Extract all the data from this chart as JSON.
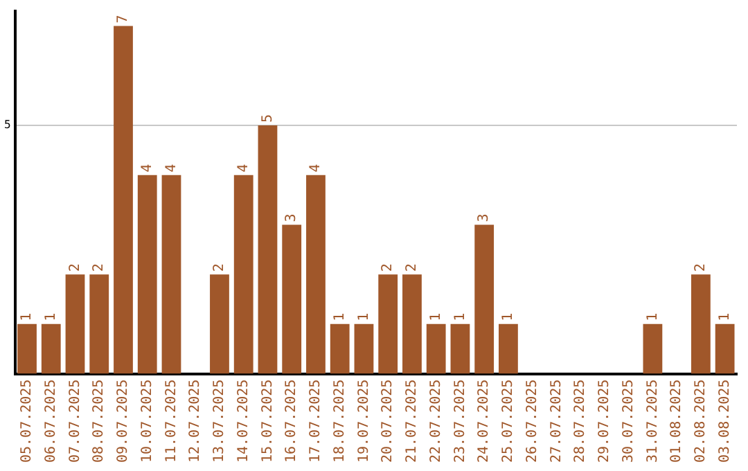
{
  "chart_data": {
    "type": "bar",
    "categories": [
      "05.07.2025",
      "06.07.2025",
      "07.07.2025",
      "08.07.2025",
      "09.07.2025",
      "10.07.2025",
      "11.07.2025",
      "12.07.2025",
      "13.07.2025",
      "14.07.2025",
      "15.07.2025",
      "16.07.2025",
      "17.07.2025",
      "18.07.2025",
      "19.07.2025",
      "20.07.2025",
      "21.07.2025",
      "22.07.2025",
      "23.07.2025",
      "24.07.2025",
      "25.07.2025",
      "26.07.2025",
      "27.07.2025",
      "28.07.2025",
      "29.07.2025",
      "30.07.2025",
      "31.07.2025",
      "01.08.2025",
      "02.08.2025",
      "03.08.2025"
    ],
    "values": [
      1,
      1,
      2,
      2,
      7,
      4,
      4,
      0,
      2,
      4,
      5,
      3,
      4,
      1,
      1,
      2,
      2,
      1,
      1,
      3,
      1,
      0,
      0,
      0,
      0,
      0,
      1,
      0,
      2,
      1
    ],
    "value_labels": [
      "1",
      "1",
      "2",
      "2",
      "7",
      "4",
      "4",
      null,
      "2",
      "4",
      "5",
      "3",
      "4",
      "1",
      "1",
      "2",
      "2",
      "1",
      "1",
      "3",
      "1",
      null,
      null,
      null,
      null,
      null,
      "1",
      null,
      "2",
      "1"
    ],
    "color": "#a0572a",
    "ylim": [
      0,
      7.3
    ],
    "yticks": [
      5
    ],
    "grid": "y",
    "legend": false
  }
}
